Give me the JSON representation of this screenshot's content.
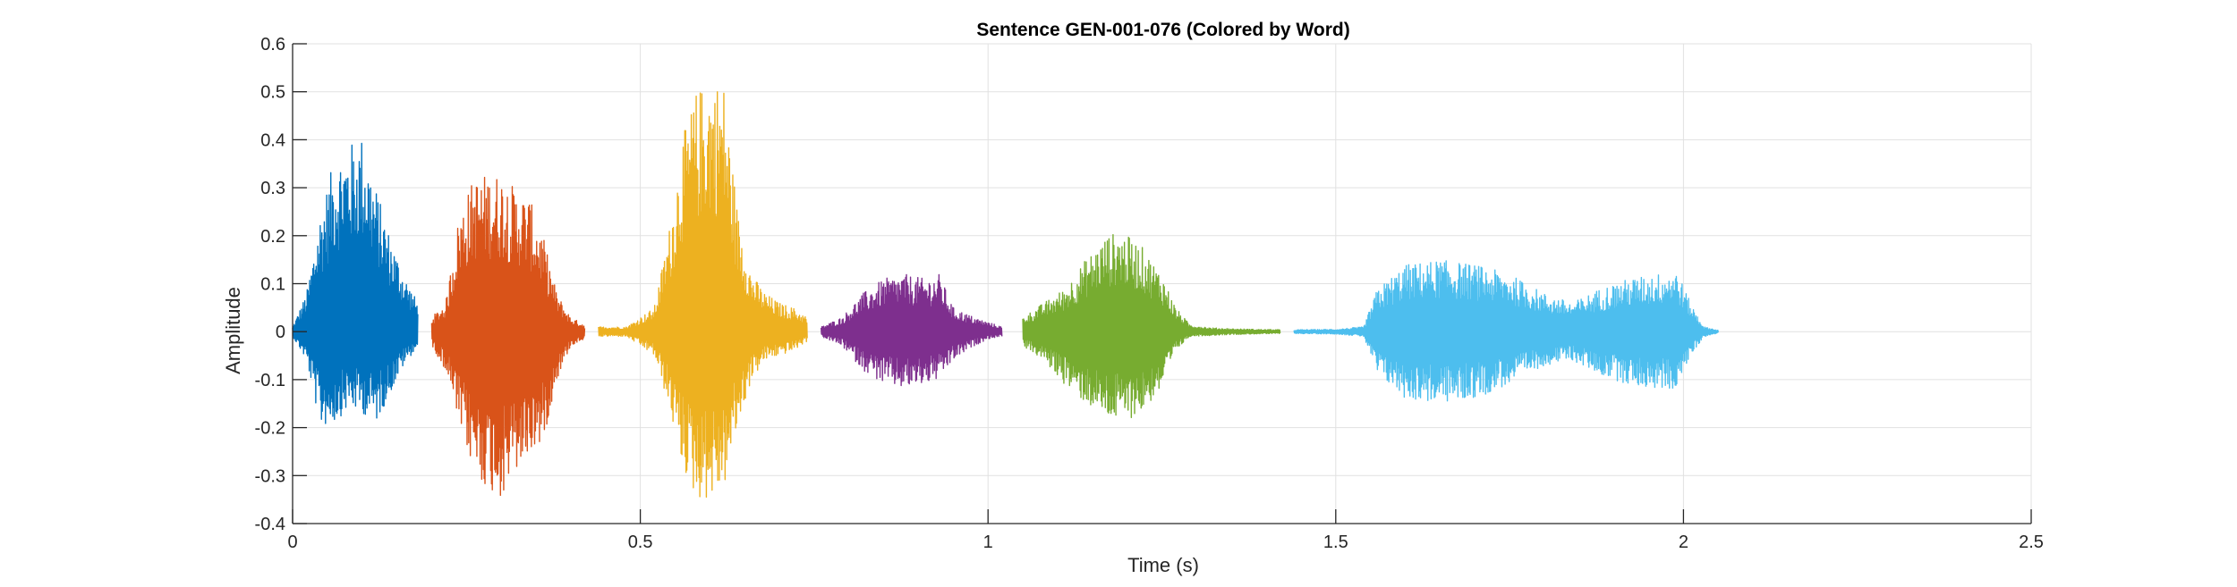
{
  "chart_data": {
    "type": "line",
    "title": "Sentence GEN-001-076 (Colored by Word)",
    "xlabel": "Time (s)",
    "ylabel": "Amplitude",
    "xlim": [
      0,
      2.5
    ],
    "ylim": [
      -0.4,
      0.6
    ],
    "xticks": [
      0,
      0.5,
      1,
      1.5,
      2,
      2.5
    ],
    "xtick_labels": [
      "0",
      "0.5",
      "1",
      "1.5",
      "2",
      "2.5"
    ],
    "yticks": [
      -0.4,
      -0.3,
      -0.2,
      -0.1,
      0,
      0.1,
      0.2,
      0.3,
      0.4,
      0.5,
      0.6
    ],
    "ytick_labels": [
      "-0.4",
      "-0.3",
      "-0.2",
      "-0.1",
      "0",
      "0.1",
      "0.2",
      "0.3",
      "0.4",
      "0.5",
      "0.6"
    ],
    "grid": true,
    "series": [
      {
        "color": "#0072BD",
        "x": [
          0.0,
          0.02,
          0.04,
          0.06,
          0.08,
          0.1,
          0.12,
          0.14,
          0.16,
          0.18
        ],
        "max": [
          0.01,
          0.08,
          0.25,
          0.36,
          0.39,
          0.41,
          0.3,
          0.2,
          0.12,
          0.06
        ],
        "min": [
          -0.01,
          -0.06,
          -0.2,
          -0.19,
          -0.16,
          -0.17,
          -0.19,
          -0.13,
          -0.07,
          -0.03
        ]
      },
      {
        "color": "#D95319",
        "x": [
          0.2,
          0.22,
          0.24,
          0.26,
          0.28,
          0.3,
          0.32,
          0.34,
          0.36,
          0.38,
          0.4,
          0.42
        ],
        "max": [
          0.03,
          0.06,
          0.25,
          0.32,
          0.33,
          0.33,
          0.3,
          0.28,
          0.2,
          0.08,
          0.03,
          0.015
        ],
        "min": [
          -0.03,
          -0.08,
          -0.2,
          -0.29,
          -0.33,
          -0.35,
          -0.3,
          -0.26,
          -0.23,
          -0.1,
          -0.03,
          -0.015
        ]
      },
      {
        "color": "#EDB120",
        "x": [
          0.44,
          0.48,
          0.52,
          0.54,
          0.56,
          0.58,
          0.6,
          0.62,
          0.64,
          0.66,
          0.68,
          0.7,
          0.72,
          0.74
        ],
        "max": [
          0.01,
          0.01,
          0.05,
          0.2,
          0.4,
          0.5,
          0.53,
          0.52,
          0.25,
          0.12,
          0.08,
          0.06,
          0.05,
          0.03
        ],
        "min": [
          -0.01,
          -0.01,
          -0.05,
          -0.15,
          -0.28,
          -0.35,
          -0.35,
          -0.33,
          -0.2,
          -0.1,
          -0.06,
          -0.05,
          -0.04,
          -0.02
        ]
      },
      {
        "color": "#7E2F8E",
        "x": [
          0.76,
          0.79,
          0.82,
          0.85,
          0.88,
          0.91,
          0.93,
          0.95,
          0.98,
          1.0,
          1.02
        ],
        "max": [
          0.01,
          0.03,
          0.08,
          0.11,
          0.12,
          0.11,
          0.12,
          0.05,
          0.03,
          0.02,
          0.01
        ],
        "min": [
          -0.01,
          -0.03,
          -0.08,
          -0.11,
          -0.12,
          -0.11,
          -0.1,
          -0.06,
          -0.03,
          -0.015,
          -0.01
        ]
      },
      {
        "color": "#77AC30",
        "x": [
          1.05,
          1.08,
          1.11,
          1.14,
          1.17,
          1.19,
          1.22,
          1.25,
          1.27,
          1.29,
          1.32,
          1.35,
          1.38,
          1.42
        ],
        "max": [
          0.03,
          0.06,
          0.09,
          0.15,
          0.2,
          0.21,
          0.18,
          0.12,
          0.05,
          0.015,
          0.008,
          0.006,
          0.005,
          0.004
        ],
        "min": [
          -0.03,
          -0.06,
          -0.11,
          -0.15,
          -0.18,
          -0.19,
          -0.17,
          -0.12,
          -0.04,
          -0.01,
          -0.008,
          -0.006,
          -0.005,
          -0.004
        ]
      },
      {
        "color": "#4DBEEE",
        "x": [
          1.44,
          1.5,
          1.54,
          1.56,
          1.6,
          1.65,
          1.7,
          1.75,
          1.8,
          1.84,
          1.88,
          1.92,
          1.96,
          1.99,
          2.01,
          2.03,
          2.05
        ],
        "max": [
          0.004,
          0.005,
          0.01,
          0.09,
          0.14,
          0.15,
          0.14,
          0.12,
          0.08,
          0.06,
          0.09,
          0.11,
          0.12,
          0.13,
          0.06,
          0.01,
          0.003
        ],
        "min": [
          -0.004,
          -0.005,
          -0.01,
          -0.09,
          -0.14,
          -0.15,
          -0.14,
          -0.11,
          -0.07,
          -0.06,
          -0.09,
          -0.11,
          -0.12,
          -0.12,
          -0.05,
          -0.01,
          -0.003
        ]
      }
    ]
  }
}
